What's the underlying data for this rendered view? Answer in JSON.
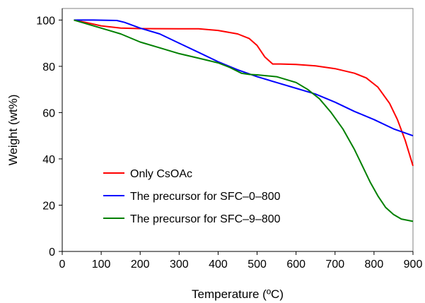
{
  "chart_data": {
    "type": "line",
    "title": "",
    "xlabel": "Temperature (ºC)",
    "ylabel": "Weight (wt%)",
    "xlim": [
      0,
      900
    ],
    "ylim": [
      0,
      105
    ],
    "xticks": [
      0,
      100,
      200,
      300,
      400,
      500,
      600,
      700,
      800,
      900
    ],
    "yticks": [
      0,
      20,
      40,
      60,
      80,
      100
    ],
    "grid": false,
    "legend_position": "lower-left (inside plot)",
    "series": [
      {
        "name": "Only CsOAc",
        "color": "#ff0000",
        "points": [
          [
            30,
            100
          ],
          [
            60,
            99
          ],
          [
            100,
            97.5
          ],
          [
            150,
            96.5
          ],
          [
            200,
            96.3
          ],
          [
            300,
            96.2
          ],
          [
            350,
            96.2
          ],
          [
            400,
            95.5
          ],
          [
            450,
            94
          ],
          [
            480,
            92
          ],
          [
            500,
            89
          ],
          [
            520,
            84
          ],
          [
            540,
            81
          ],
          [
            560,
            81
          ],
          [
            600,
            80.8
          ],
          [
            650,
            80.2
          ],
          [
            700,
            79
          ],
          [
            750,
            77
          ],
          [
            780,
            75
          ],
          [
            810,
            71
          ],
          [
            840,
            64
          ],
          [
            860,
            57
          ],
          [
            880,
            48
          ],
          [
            900,
            37
          ]
        ]
      },
      {
        "name": "The precursor for SFC–0–800",
        "color": "#0000ff",
        "points": [
          [
            30,
            100
          ],
          [
            80,
            100
          ],
          [
            140,
            99.8
          ],
          [
            160,
            99
          ],
          [
            200,
            96.5
          ],
          [
            250,
            94
          ],
          [
            300,
            90
          ],
          [
            350,
            86
          ],
          [
            400,
            82
          ],
          [
            450,
            78.5
          ],
          [
            500,
            75.5
          ],
          [
            550,
            73
          ],
          [
            600,
            70.5
          ],
          [
            650,
            68
          ],
          [
            700,
            64.5
          ],
          [
            750,
            60.5
          ],
          [
            800,
            57
          ],
          [
            850,
            53
          ],
          [
            900,
            50
          ]
        ]
      },
      {
        "name": "The precursor for SFC–9–800",
        "color": "#008000",
        "points": [
          [
            30,
            100
          ],
          [
            50,
            99
          ],
          [
            80,
            97.5
          ],
          [
            120,
            95.5
          ],
          [
            150,
            94
          ],
          [
            200,
            90.5
          ],
          [
            250,
            88
          ],
          [
            300,
            85.5
          ],
          [
            350,
            83.5
          ],
          [
            400,
            81.5
          ],
          [
            430,
            79.5
          ],
          [
            460,
            77
          ],
          [
            480,
            76.5
          ],
          [
            500,
            76.3
          ],
          [
            550,
            75.5
          ],
          [
            600,
            73
          ],
          [
            630,
            70
          ],
          [
            660,
            66
          ],
          [
            690,
            60
          ],
          [
            720,
            53
          ],
          [
            750,
            44
          ],
          [
            770,
            37
          ],
          [
            790,
            30
          ],
          [
            810,
            24
          ],
          [
            830,
            19
          ],
          [
            850,
            16
          ],
          [
            870,
            14
          ],
          [
            900,
            13
          ]
        ]
      }
    ]
  }
}
